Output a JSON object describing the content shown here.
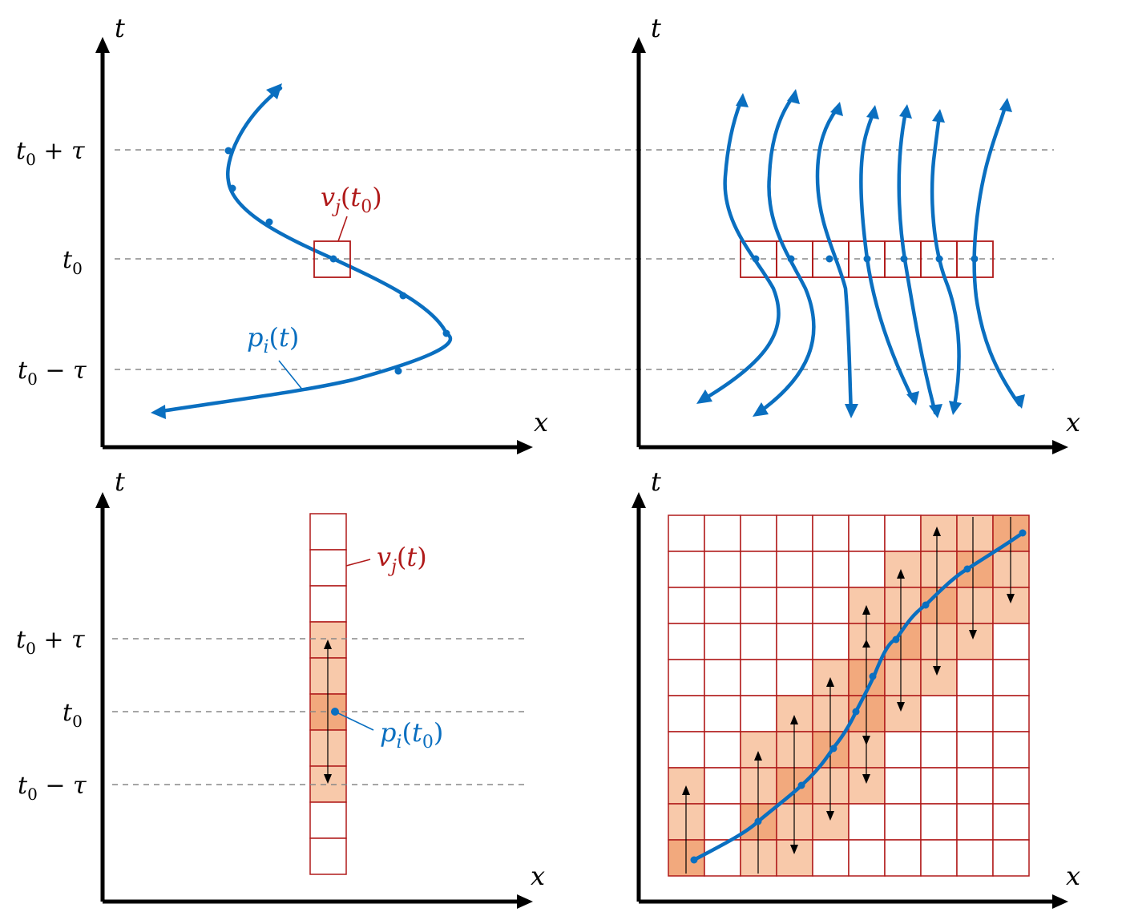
{
  "axes": {
    "x_label": "x",
    "t_label": "t"
  },
  "ticks": {
    "t_plus": "t0 + τ",
    "t0": "t0",
    "t_minus": "t0 − τ"
  },
  "labels": {
    "voxel_t0": "v_j(t_0)",
    "voxel_t": "v_j(t)",
    "particle_t": "p_i(t)",
    "particle_t0": "p_i(t_0)"
  },
  "colors": {
    "trajectory": "#0a6fc0",
    "voxel": "#b01a1a",
    "fill": "#f8c9aa",
    "fill_dark": "#f2a97d"
  }
}
